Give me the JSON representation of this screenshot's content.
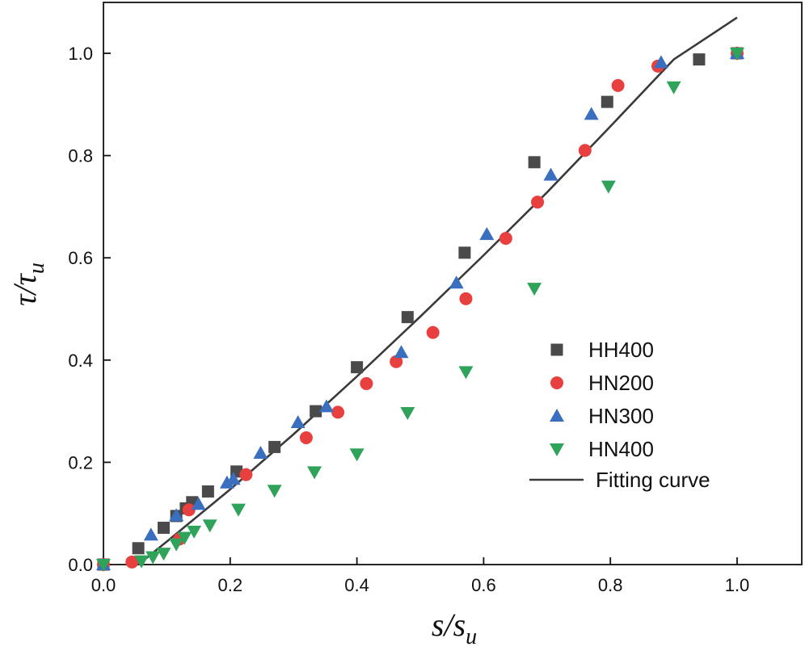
{
  "chart_data": {
    "type": "scatter",
    "title": "",
    "xlabel": {
      "main": "s",
      "sep": "/",
      "base": "s",
      "sub": "u"
    },
    "ylabel": {
      "main": "τ",
      "sep": "/",
      "base": "τ",
      "sub": "u"
    },
    "xlim": [
      0.0,
      1.1
    ],
    "ylim": [
      0.0,
      1.1
    ],
    "xticks": [
      0.0,
      0.2,
      0.4,
      0.6,
      0.8,
      1.0
    ],
    "yticks": [
      0.0,
      0.2,
      0.4,
      0.6,
      0.8,
      1.0
    ],
    "xtick_labels": [
      "0.0",
      "0.2",
      "0.4",
      "0.6",
      "0.8",
      "1.0"
    ],
    "ytick_labels": [
      "0.0",
      "0.2",
      "0.4",
      "0.6",
      "0.8",
      "1.0"
    ],
    "grid": false,
    "legend_position": "center-right",
    "series": [
      {
        "name": "HH400",
        "marker": "square",
        "color": "#4a4a4a",
        "points": [
          [
            0.0,
            0.0
          ],
          [
            0.055,
            0.032
          ],
          [
            0.095,
            0.072
          ],
          [
            0.115,
            0.095
          ],
          [
            0.13,
            0.11
          ],
          [
            0.14,
            0.122
          ],
          [
            0.165,
            0.143
          ],
          [
            0.21,
            0.182
          ],
          [
            0.27,
            0.23
          ],
          [
            0.335,
            0.3
          ],
          [
            0.4,
            0.386
          ],
          [
            0.48,
            0.484
          ],
          [
            0.57,
            0.61
          ],
          [
            0.68,
            0.787
          ],
          [
            0.795,
            0.905
          ],
          [
            0.94,
            0.988
          ],
          [
            1.0,
            1.0
          ]
        ]
      },
      {
        "name": "HN200",
        "marker": "circle",
        "color": "#e8403e",
        "points": [
          [
            0.0,
            0.0
          ],
          [
            0.045,
            0.005
          ],
          [
            0.12,
            0.05
          ],
          [
            0.135,
            0.107
          ],
          [
            0.225,
            0.176
          ],
          [
            0.32,
            0.248
          ],
          [
            0.37,
            0.298
          ],
          [
            0.415,
            0.354
          ],
          [
            0.462,
            0.397
          ],
          [
            0.52,
            0.454
          ],
          [
            0.572,
            0.52
          ],
          [
            0.635,
            0.638
          ],
          [
            0.685,
            0.709
          ],
          [
            0.76,
            0.81
          ],
          [
            0.812,
            0.937
          ],
          [
            0.875,
            0.975
          ],
          [
            1.0,
            1.0
          ]
        ]
      },
      {
        "name": "HN300",
        "marker": "triangle-up",
        "color": "#3a6fc0",
        "points": [
          [
            0.0,
            0.0
          ],
          [
            0.075,
            0.058
          ],
          [
            0.115,
            0.096
          ],
          [
            0.15,
            0.118
          ],
          [
            0.195,
            0.16
          ],
          [
            0.205,
            0.167
          ],
          [
            0.248,
            0.218
          ],
          [
            0.307,
            0.278
          ],
          [
            0.352,
            0.309
          ],
          [
            0.47,
            0.415
          ],
          [
            0.557,
            0.551
          ],
          [
            0.605,
            0.646
          ],
          [
            0.706,
            0.762
          ],
          [
            0.77,
            0.881
          ],
          [
            0.88,
            0.982
          ],
          [
            1.0,
            1.0
          ]
        ]
      },
      {
        "name": "HN400",
        "marker": "triangle-down",
        "color": "#2fa35a",
        "points": [
          [
            0.0,
            0.0
          ],
          [
            0.06,
            0.007
          ],
          [
            0.078,
            0.015
          ],
          [
            0.095,
            0.022
          ],
          [
            0.115,
            0.04
          ],
          [
            0.128,
            0.053
          ],
          [
            0.143,
            0.065
          ],
          [
            0.168,
            0.077
          ],
          [
            0.213,
            0.108
          ],
          [
            0.27,
            0.145
          ],
          [
            0.333,
            0.181
          ],
          [
            0.4,
            0.216
          ],
          [
            0.48,
            0.297
          ],
          [
            0.572,
            0.377
          ],
          [
            0.68,
            0.54
          ],
          [
            0.797,
            0.74
          ],
          [
            0.9,
            0.934
          ],
          [
            1.0,
            1.0
          ]
        ]
      }
    ],
    "fit": {
      "name": "Fitting curve",
      "color": "#3a3a3a",
      "points": [
        [
          0.055,
          0.0
        ],
        [
          0.1,
          0.045
        ],
        [
          0.2,
          0.147
        ],
        [
          0.3,
          0.255
        ],
        [
          0.4,
          0.368
        ],
        [
          0.5,
          0.485
        ],
        [
          0.6,
          0.605
        ],
        [
          0.7,
          0.728
        ],
        [
          0.8,
          0.857
        ],
        [
          0.9,
          0.988
        ],
        [
          1.0,
          1.07
        ]
      ]
    }
  }
}
